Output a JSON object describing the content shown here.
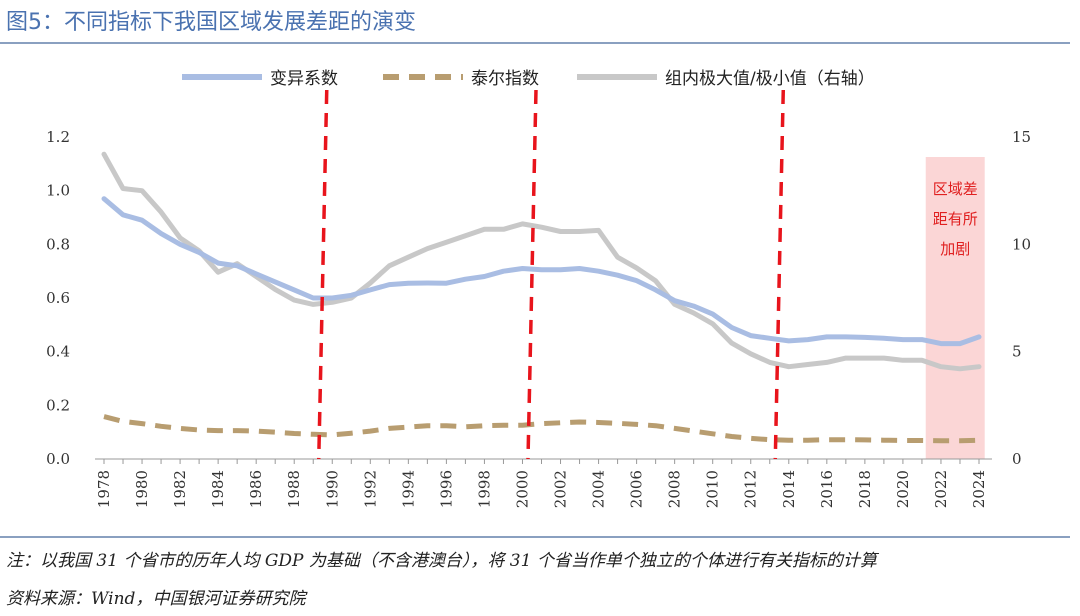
{
  "figure_title": "图5：不同指标下我国区域发展差距的演变",
  "notes": {
    "note": "注：以我国 31 个省市的历年人均 GDP 为基础（不含港澳台），将 31 个省当作单个独立的个体进行有关指标的计算",
    "source": "资料来源：Wind，中国银河证券研究院"
  },
  "colors": {
    "cv": "#a9bde3",
    "theil": "#b89d70",
    "ratio": "#c8c8c8",
    "vline": "#e8141c",
    "shade": "#fbd6d6",
    "axis": "#999999"
  },
  "chart_data": {
    "type": "line",
    "title": "",
    "xlabel": "",
    "ylabel": "",
    "x": [
      1978,
      1979,
      1980,
      1981,
      1982,
      1983,
      1984,
      1985,
      1986,
      1987,
      1988,
      1989,
      1990,
      1991,
      1992,
      1993,
      1994,
      1995,
      1996,
      1997,
      1998,
      1999,
      2000,
      2001,
      2002,
      2003,
      2004,
      2005,
      2006,
      2007,
      2008,
      2009,
      2010,
      2011,
      2012,
      2013,
      2014,
      2015,
      2016,
      2017,
      2018,
      2019,
      2020,
      2021,
      2022,
      2023,
      2024
    ],
    "x_ticks": [
      "1978",
      "1980",
      "1982",
      "1984",
      "1986",
      "1988",
      "1990",
      "1992",
      "1994",
      "1996",
      "1998",
      "2000",
      "2002",
      "2004",
      "2006",
      "2008",
      "2010",
      "2012",
      "2014",
      "2016",
      "2018",
      "2020",
      "2022",
      "2024"
    ],
    "ylim_left": [
      0,
      1.2
    ],
    "yticks_left": [
      "0.0",
      "0.2",
      "0.4",
      "0.6",
      "0.8",
      "1.0",
      "1.2"
    ],
    "ylim_right": [
      0,
      15
    ],
    "yticks_right": [
      "0",
      "5",
      "10",
      "15"
    ],
    "series": [
      {
        "name": "变异系数",
        "axis": "left",
        "style": "solid",
        "values": [
          0.97,
          0.91,
          0.89,
          0.84,
          0.8,
          0.77,
          0.73,
          0.72,
          0.69,
          0.66,
          0.63,
          0.6,
          0.6,
          0.61,
          0.63,
          0.65,
          0.655,
          0.656,
          0.655,
          0.67,
          0.68,
          0.7,
          0.71,
          0.705,
          0.705,
          0.71,
          0.7,
          0.685,
          0.665,
          0.63,
          0.59,
          0.57,
          0.54,
          0.49,
          0.46,
          0.45,
          0.44,
          0.445,
          0.455,
          0.455,
          0.453,
          0.45,
          0.445,
          0.445,
          0.43,
          0.43,
          0.455
        ]
      },
      {
        "name": "泰尔指数",
        "axis": "left",
        "style": "dashed",
        "values": [
          0.158,
          0.14,
          0.132,
          0.122,
          0.114,
          0.108,
          0.106,
          0.106,
          0.104,
          0.1,
          0.095,
          0.092,
          0.09,
          0.096,
          0.104,
          0.114,
          0.119,
          0.124,
          0.124,
          0.12,
          0.124,
          0.126,
          0.126,
          0.132,
          0.135,
          0.138,
          0.136,
          0.133,
          0.129,
          0.124,
          0.114,
          0.104,
          0.094,
          0.084,
          0.077,
          0.072,
          0.07,
          0.07,
          0.072,
          0.072,
          0.071,
          0.07,
          0.069,
          0.069,
          0.068,
          0.068,
          0.07
        ]
      },
      {
        "name": "组内极大值/极小值（右轴）",
        "axis": "right",
        "style": "solid",
        "values": [
          14.2,
          12.6,
          12.5,
          11.5,
          10.3,
          9.7,
          8.7,
          9.1,
          8.5,
          7.9,
          7.4,
          7.2,
          7.3,
          7.5,
          8.2,
          9.0,
          9.4,
          9.8,
          10.1,
          10.4,
          10.7,
          10.7,
          10.95,
          10.8,
          10.6,
          10.6,
          10.65,
          9.4,
          8.9,
          8.3,
          7.2,
          6.8,
          6.3,
          5.4,
          4.9,
          4.5,
          4.3,
          4.4,
          4.5,
          4.7,
          4.7,
          4.7,
          4.6,
          4.6,
          4.3,
          4.2,
          4.3
        ]
      }
    ],
    "vertical_markers": [
      1989.5,
      2000.5,
      2013.5
    ],
    "shaded_region": {
      "from": 2021.2,
      "to": 2024.3,
      "label_lines": [
        "区域差",
        "距有所",
        "加剧"
      ]
    },
    "legend_position": "top"
  }
}
